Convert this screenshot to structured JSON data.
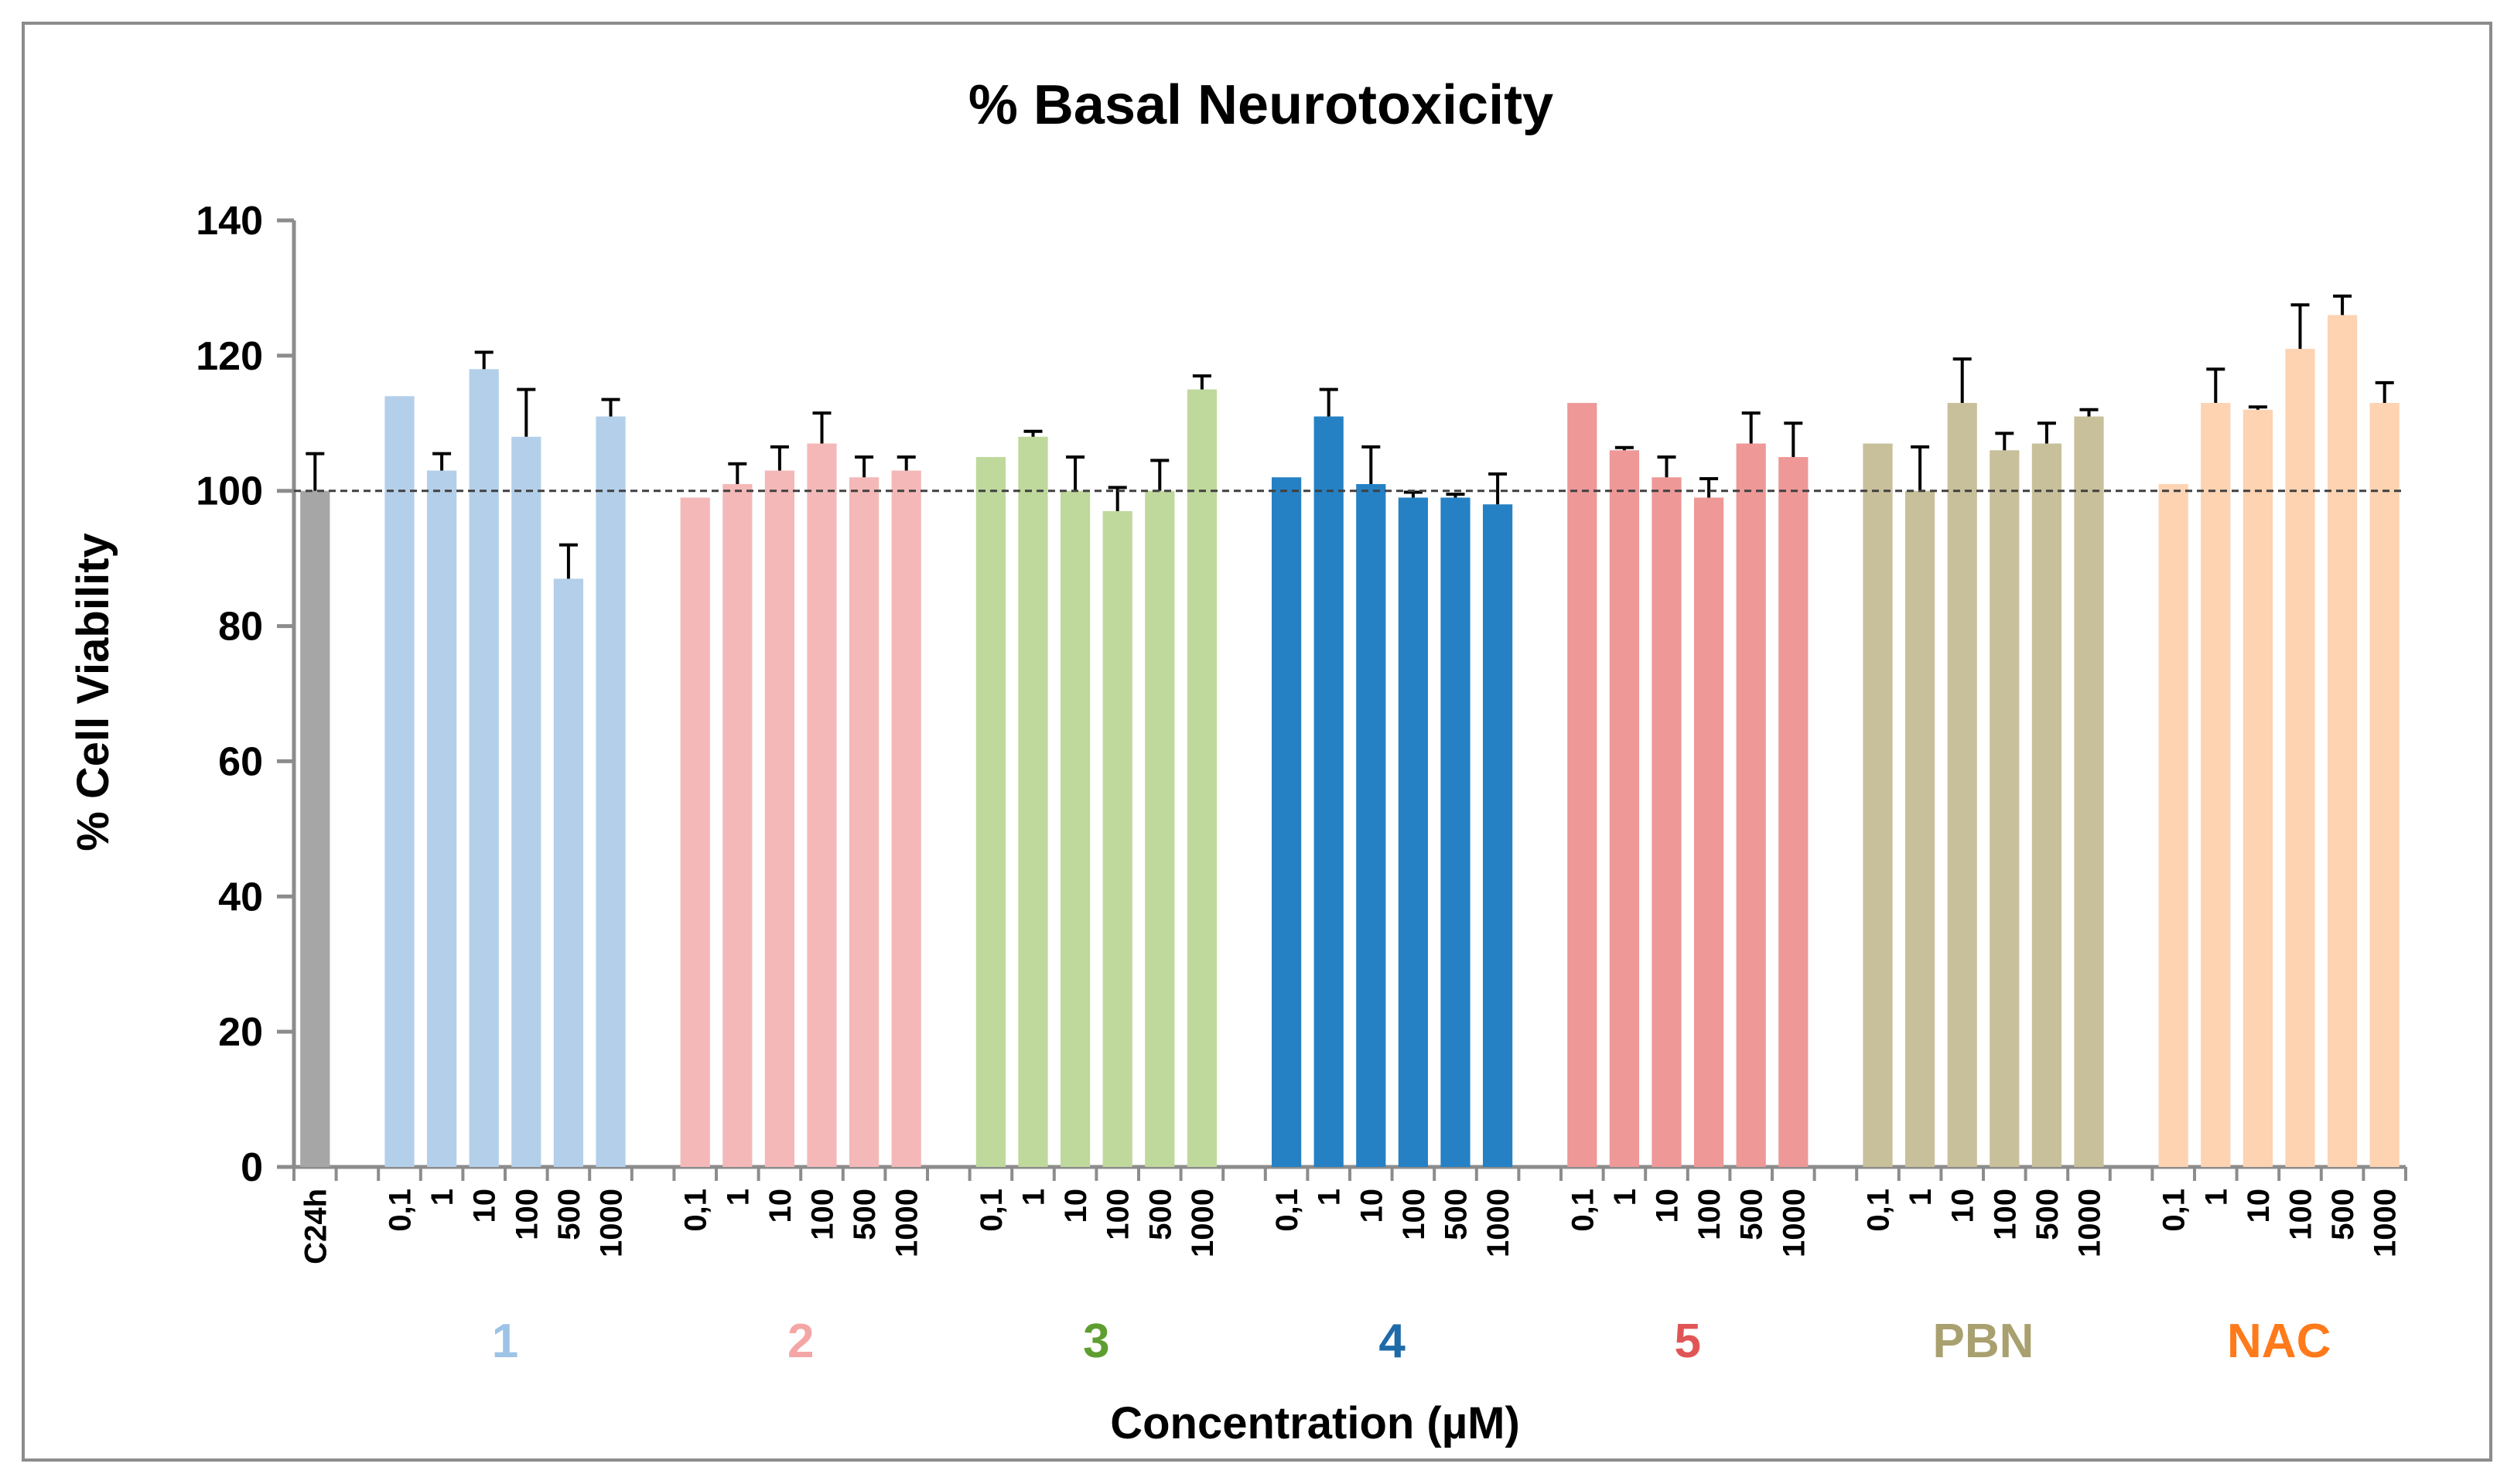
{
  "chart_data": {
    "type": "bar",
    "title": "% Basal Neurotoxicity",
    "xlabel": "Concentration (µM)",
    "ylabel": "% Cell Viability",
    "ylim": [
      0,
      140
    ],
    "yticks": [
      0,
      20,
      40,
      60,
      80,
      100,
      120,
      140
    ],
    "reference_line": 100,
    "control": {
      "label": "C24h",
      "value": 100,
      "error": 5.5,
      "color": "#a6a6a6"
    },
    "concentrations": [
      "0,1",
      "1",
      "10",
      "100",
      "500",
      "1000"
    ],
    "groups": [
      {
        "name": "1",
        "bar_color": "#b4cfe9",
        "label_color": "#9dc3e6",
        "values": [
          114,
          103,
          118,
          108,
          87,
          111
        ],
        "errors": [
          0,
          2.5,
          2.5,
          7,
          5,
          2.5
        ]
      },
      {
        "name": "2",
        "bar_color": "#f4b8b8",
        "label_color": "#f4a6a6",
        "values": [
          99,
          101,
          103,
          107,
          102,
          103
        ],
        "errors": [
          0,
          3,
          3.5,
          4.5,
          3,
          2
        ]
      },
      {
        "name": "3",
        "bar_color": "#bfd99c",
        "label_color": "#5e9e30",
        "values": [
          105,
          108,
          100,
          97,
          100,
          115
        ],
        "errors": [
          0,
          0.8,
          5,
          3.5,
          4.5,
          2
        ]
      },
      {
        "name": "4",
        "bar_color": "#2581c4",
        "label_color": "#1f6aa8",
        "values": [
          102,
          111,
          101,
          99,
          99,
          98
        ],
        "errors": [
          0,
          4,
          5.5,
          0.8,
          0.5,
          4.5
        ]
      },
      {
        "name": "5",
        "bar_color": "#ee9898",
        "label_color": "#e05555",
        "values": [
          113,
          106,
          102,
          99,
          107,
          105
        ],
        "errors": [
          0,
          0.4,
          3,
          2.8,
          4.5,
          5
        ]
      },
      {
        "name": "PBN",
        "bar_color": "#c8c09a",
        "label_color": "#a9a06f",
        "values": [
          107,
          100,
          113,
          106,
          107,
          111
        ],
        "errors": [
          0,
          6.5,
          6.5,
          2.5,
          3,
          1
        ]
      },
      {
        "name": "NAC",
        "bar_color": "#fdd3b2",
        "label_color": "#ff7a1a",
        "values": [
          101,
          113,
          112,
          121,
          126,
          113
        ],
        "errors": [
          0,
          5,
          0.4,
          6.5,
          2.8,
          3
        ]
      }
    ]
  }
}
